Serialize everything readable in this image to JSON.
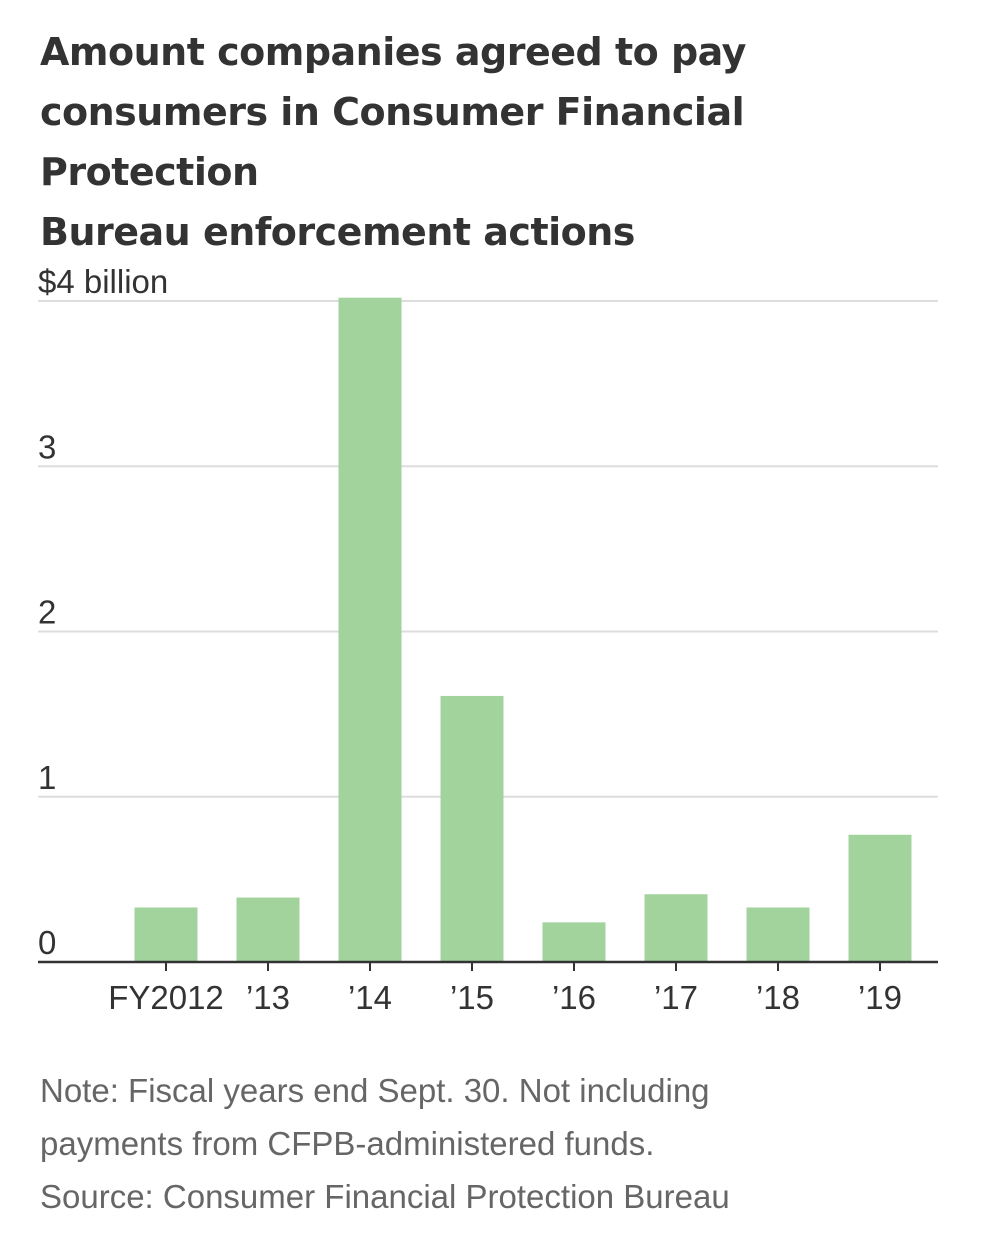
{
  "title_lines": [
    "Amount companies agreed to pay",
    "consumers in Consumer Financial Protection",
    "Bureau enforcement actions"
  ],
  "note_lines": [
    "Note: Fiscal years end Sept. 30. Not including",
    "payments from CFPB-administered funds."
  ],
  "source": "Source: Consumer Financial Protection Bureau",
  "colors": {
    "bar": "#a3d39c",
    "grid": "#dddddd",
    "axis": "#333333",
    "text": "#333333",
    "note": "#666666"
  },
  "chart_data": {
    "type": "bar",
    "title": "Amount companies agreed to pay consumers in Consumer Financial Protection Bureau enforcement actions",
    "xlabel": "",
    "ylabel": "",
    "unit": "billion dollars",
    "categories": [
      "FY2012",
      "’13",
      "’14",
      "’15",
      "’16",
      "’17",
      "’18",
      "’19"
    ],
    "values": [
      0.33,
      0.39,
      4.02,
      1.61,
      0.24,
      0.41,
      0.33,
      0.77
    ],
    "ylim": [
      0,
      4
    ],
    "yticks": [
      0,
      1,
      2,
      3,
      4
    ],
    "ytick_labels": [
      "0",
      "1",
      "2",
      "3",
      "$4 billion"
    ],
    "grid": true,
    "legend": "none"
  }
}
